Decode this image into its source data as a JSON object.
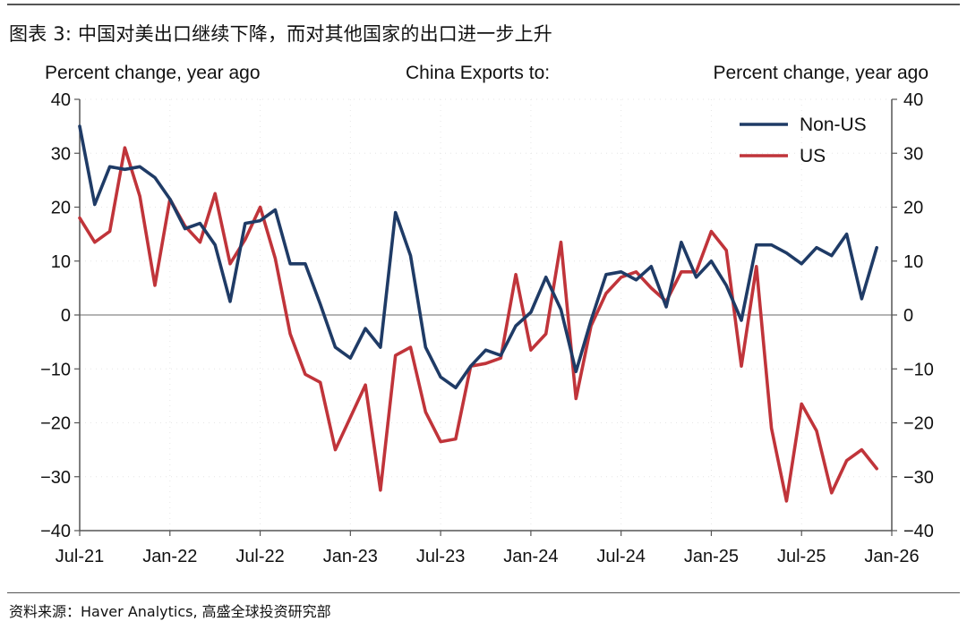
{
  "figure_title": "图表 3: 中国对美出口继续下降，而对其他国家的出口进一步上升",
  "source_note": "资料来源：Haver Analytics, 高盛全球投资研究部",
  "colors": {
    "non_us": "#1f3b66",
    "us": "#c0343a",
    "axis": "#555555",
    "zero_line": "#888888",
    "grid": "#e6e6e6"
  },
  "chart_data": {
    "type": "line",
    "title": "China Exports to:",
    "ylabel_left": "Percent change, year ago",
    "ylabel_right": "Percent change, year ago",
    "ylim": [
      -40,
      40
    ],
    "yticks": [
      40,
      30,
      20,
      10,
      0,
      -10,
      -20,
      -30,
      -40
    ],
    "ytick_labels": [
      "40",
      "30",
      "20",
      "10",
      "0",
      "−10",
      "−20",
      "−30",
      "−40"
    ],
    "x_range": [
      "2021-07",
      "2026-01"
    ],
    "x_tick_labels": [
      "Jul-21",
      "Jan-22",
      "Jul-22",
      "Jan-23",
      "Jul-23",
      "Jan-24",
      "Jul-24",
      "Jan-25",
      "Jul-25",
      "Jan-26"
    ],
    "x_tick_dates": [
      "2021-07",
      "2022-01",
      "2022-07",
      "2023-01",
      "2023-07",
      "2024-01",
      "2024-07",
      "2025-01",
      "2025-07",
      "2026-01"
    ],
    "grid": "light dotted",
    "legend_position": "top-right",
    "dates": [
      "2021-07",
      "2021-08",
      "2021-09",
      "2021-10",
      "2021-11",
      "2021-12",
      "2022-01",
      "2022-02",
      "2022-03",
      "2022-04",
      "2022-05",
      "2022-06",
      "2022-07",
      "2022-08",
      "2022-09",
      "2022-10",
      "2022-11",
      "2022-12",
      "2023-01",
      "2023-02",
      "2023-03",
      "2023-04",
      "2023-05",
      "2023-06",
      "2023-07",
      "2023-08",
      "2023-09",
      "2023-10",
      "2023-11",
      "2023-12",
      "2024-01",
      "2024-02",
      "2024-03",
      "2024-04",
      "2024-05",
      "2024-06",
      "2024-07",
      "2024-08",
      "2024-09",
      "2024-10",
      "2024-11",
      "2024-12",
      "2025-01",
      "2025-02",
      "2025-03",
      "2025-04",
      "2025-05",
      "2025-06",
      "2025-07",
      "2025-08",
      "2025-09",
      "2025-10",
      "2025-11",
      "2025-12"
    ],
    "series": [
      {
        "name": "Non-US",
        "values": [
          35,
          20.5,
          27.5,
          27,
          27.5,
          25.5,
          21.5,
          16,
          17,
          13,
          2.5,
          17,
          17.5,
          19.5,
          9.5,
          9.5,
          2,
          -6,
          -8,
          -2.5,
          -6,
          19,
          11,
          -6,
          -11.5,
          -13.5,
          -9.5,
          -6.5,
          -7.5,
          -2,
          0.5,
          7,
          1,
          -10.5,
          -1,
          7.5,
          8,
          6.5,
          9,
          1.5,
          13.5,
          7,
          10,
          5.5,
          -1,
          13,
          13,
          11.5,
          9.5,
          12.5,
          11,
          15,
          3,
          12.5
        ]
      },
      {
        "name": "US",
        "values": [
          18,
          13.5,
          15.5,
          31,
          22,
          5.5,
          21.5,
          16.5,
          13.5,
          22.5,
          9.5,
          14,
          20,
          10.5,
          -3.5,
          -11,
          -12.5,
          -25,
          -19,
          -13,
          -32.5,
          -7.5,
          -6,
          -18,
          -23.5,
          -23,
          -9.5,
          -9,
          -8,
          7.5,
          -6.5,
          -3.5,
          13.5,
          -15.5,
          -2,
          4,
          7,
          8,
          5,
          2.5,
          8,
          8,
          15.5,
          12,
          -9.5,
          9,
          -21,
          -34.5,
          -16.5,
          -21.5,
          -33,
          -27,
          -25,
          -28.5
        ]
      }
    ]
  }
}
